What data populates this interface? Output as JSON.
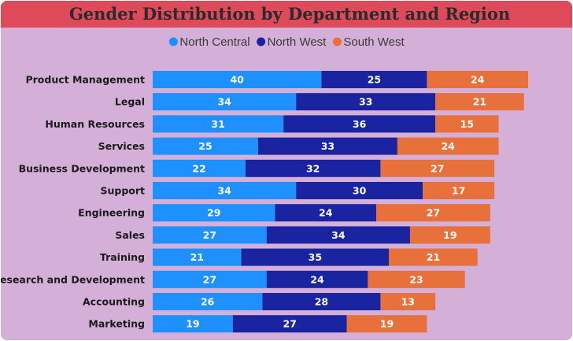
{
  "chart_data": {
    "type": "bar",
    "orientation": "horizontal",
    "stacked": true,
    "title": "Gender Distribution by Department and Region",
    "categories": [
      "Product Management",
      "Legal",
      "Human Resources",
      "Services",
      "Business Development",
      "Support",
      "Engineering",
      "Sales",
      "Training",
      "Research and Development",
      "Accounting",
      "Marketing"
    ],
    "series": [
      {
        "name": "North Central",
        "color": "#1e90ff",
        "values": [
          40,
          34,
          31,
          25,
          22,
          34,
          29,
          27,
          21,
          27,
          26,
          19
        ]
      },
      {
        "name": "North West",
        "color": "#1a24a0",
        "values": [
          25,
          33,
          36,
          33,
          32,
          30,
          24,
          34,
          35,
          24,
          28,
          27
        ]
      },
      {
        "name": "South West",
        "color": "#e8703a",
        "values": [
          24,
          21,
          15,
          24,
          27,
          17,
          27,
          19,
          21,
          23,
          13,
          19
        ]
      }
    ],
    "legend_position": "top-center",
    "data_labels": true,
    "grid": false
  }
}
